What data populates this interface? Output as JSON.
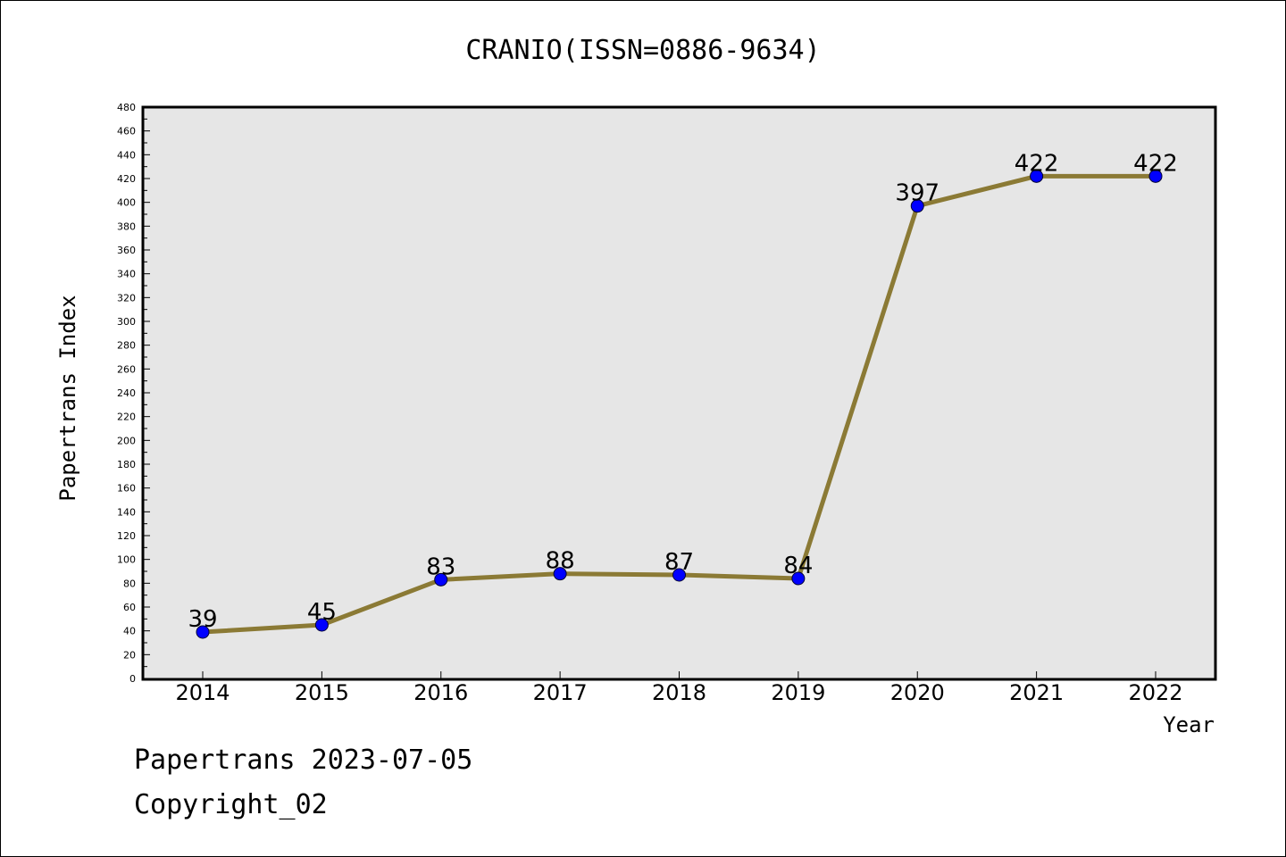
{
  "chart_data": {
    "type": "line",
    "title": "CRANIO(ISSN=0886-9634)",
    "xlabel": "Year",
    "ylabel": "Papertrans Index",
    "categories": [
      "2014",
      "2015",
      "2016",
      "2017",
      "2018",
      "2019",
      "2020",
      "2021",
      "2022"
    ],
    "values": [
      39,
      45,
      83,
      88,
      87,
      84,
      397,
      422,
      422
    ],
    "ylim": [
      0,
      480
    ],
    "ytick_step": 20,
    "grid": false,
    "line_color": "#8b7a35",
    "marker_color": "#0000ff",
    "plot_background": "#e6e6e6"
  },
  "footer": {
    "line1": "Papertrans 2023-07-05",
    "line2": "Copyright_02"
  }
}
